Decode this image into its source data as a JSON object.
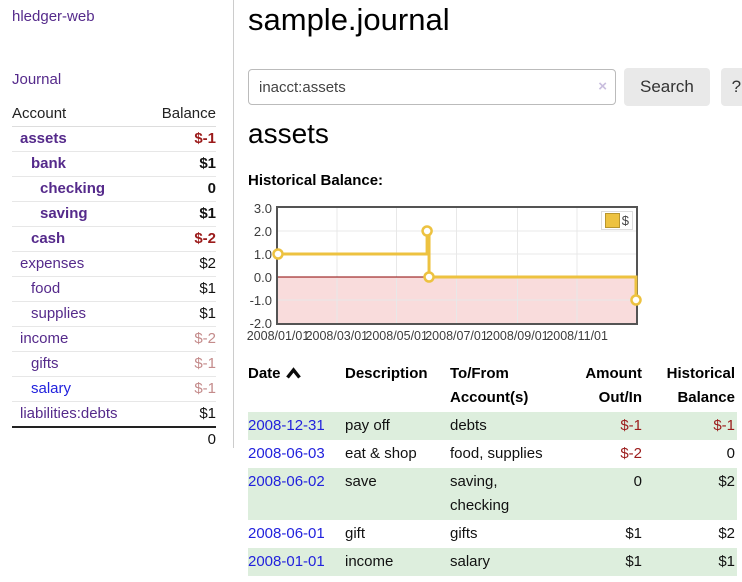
{
  "sidebar": {
    "app_title": "hledger-web",
    "nav": {
      "journal": "Journal"
    },
    "table": {
      "account_header": "Account",
      "balance_header": "Balance",
      "accounts": [
        {
          "name": "assets",
          "balance": "$-1"
        },
        {
          "name": "bank",
          "balance": "$1"
        },
        {
          "name": "checking",
          "balance": "0"
        },
        {
          "name": "saving",
          "balance": "$1"
        },
        {
          "name": "cash",
          "balance": "$-2"
        },
        {
          "name": "expenses",
          "balance": "$2"
        },
        {
          "name": "food",
          "balance": "$1"
        },
        {
          "name": "supplies",
          "balance": "$1"
        },
        {
          "name": "income",
          "balance": "$-2"
        },
        {
          "name": "gifts",
          "balance": "$-1"
        },
        {
          "name": "salary",
          "balance": "$-1"
        },
        {
          "name": "liabilities:debts",
          "balance": "$1"
        }
      ],
      "total": "0"
    }
  },
  "header": {
    "title": "sample.journal"
  },
  "search": {
    "value": "inacct:assets",
    "clear_label": "×",
    "button": "Search",
    "help_button": "?"
  },
  "account_page": {
    "heading": "assets",
    "chart_label": "Historical Balance:"
  },
  "chart_data": {
    "type": "line",
    "step": true,
    "title": "Historical Balance:",
    "x_type": "date",
    "x_range": [
      "2008/01/01",
      "2008/12/31"
    ],
    "x_total_days": 365,
    "ylim": [
      -2,
      3
    ],
    "grid": true,
    "legend_position": "top-right",
    "series": [
      {
        "name": "$",
        "color": "#edc240",
        "points": [
          {
            "date": "2008-01-01",
            "day": 0,
            "value": 1
          },
          {
            "date": "2008-06-01",
            "day": 152,
            "value": 2
          },
          {
            "date": "2008-06-03",
            "day": 154,
            "value": 0
          },
          {
            "date": "2008-12-31",
            "day": 365,
            "value": -1
          }
        ]
      }
    ],
    "xticks": [
      {
        "day": 0,
        "label": "2008/01/01"
      },
      {
        "day": 60,
        "label": "2008/03/01"
      },
      {
        "day": 121,
        "label": "2008/05/01"
      },
      {
        "day": 182,
        "label": "2008/07/01"
      },
      {
        "day": 244,
        "label": "2008/09/01"
      },
      {
        "day": 305,
        "label": "2008/11/01"
      }
    ],
    "yticks": [
      {
        "value": 3,
        "label": "3.0"
      },
      {
        "value": 2,
        "label": "2.0"
      },
      {
        "value": 1,
        "label": "1.0"
      },
      {
        "value": 0,
        "label": "0.0"
      },
      {
        "value": -1,
        "label": "-1.0"
      },
      {
        "value": -2,
        "label": "-2.0"
      }
    ],
    "negative_region_color": "#f9dcdc",
    "zero_line_color": "#8b0000",
    "grid_color": "#e8e8e8",
    "border_color": "#545454"
  },
  "register": {
    "headers": {
      "date": "Date",
      "description": "Description",
      "tofrom_line1": "To/From",
      "tofrom_line2": "Account(s)",
      "amount_line1": "Amount",
      "amount_line2": "Out/In",
      "balance_line1": "Historical",
      "balance_line2": "Balance"
    },
    "rows": [
      {
        "date": "2008-12-31",
        "description": "pay off",
        "accounts": [
          "debts"
        ],
        "amount": "$-1",
        "balance": "$-1"
      },
      {
        "date": "2008-06-03",
        "description": "eat & shop",
        "accounts": [
          "food, supplies"
        ],
        "amount": "$-2",
        "balance": "0"
      },
      {
        "date": "2008-06-02",
        "description": "save",
        "accounts": [
          "saving,",
          "checking"
        ],
        "amount": "0",
        "balance": "$2"
      },
      {
        "date": "2008-06-01",
        "description": "gift",
        "accounts": [
          "gifts"
        ],
        "amount": "$1",
        "balance": "$2"
      },
      {
        "date": "2008-01-01",
        "description": "income",
        "accounts": [
          "salary"
        ],
        "amount": "$1",
        "balance": "$1"
      }
    ]
  },
  "colors": {
    "link_purple": "#552a8b",
    "link_blue": "#2222dd",
    "negative_strong": "#9b1b1b",
    "negative_soft": "#c48b8b",
    "row_shade_green": "#ddeedd",
    "chart_line": "#edc240",
    "chart_negative_bg": "#f9dcdc",
    "chart_zero_line": "#8b0000"
  }
}
